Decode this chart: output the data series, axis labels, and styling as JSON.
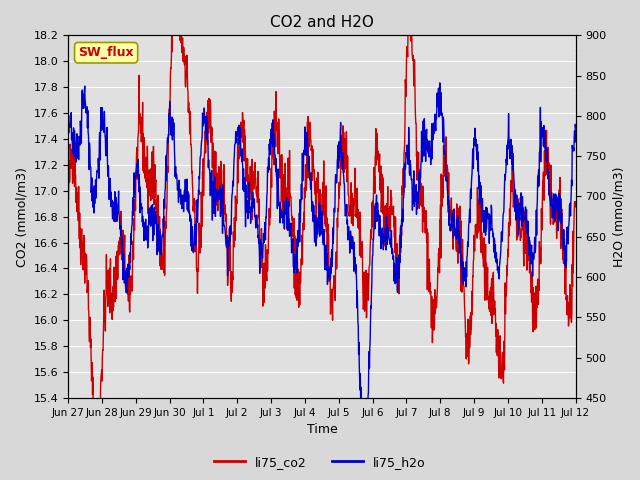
{
  "title": "CO2 and H2O",
  "xlabel": "Time",
  "ylabel_left": "CO2 (mmol/m3)",
  "ylabel_right": "H2O (mmol/m3)",
  "ylim_left": [
    15.4,
    18.2
  ],
  "ylim_right": [
    450,
    900
  ],
  "yticks_left": [
    15.4,
    15.6,
    15.8,
    16.0,
    16.2,
    16.4,
    16.6,
    16.8,
    17.0,
    17.2,
    17.4,
    17.6,
    17.8,
    18.0,
    18.2
  ],
  "yticks_right": [
    450,
    500,
    550,
    600,
    650,
    700,
    750,
    800,
    850,
    900
  ],
  "xtick_labels": [
    "Jun 27",
    "Jun 28",
    "Jun 29",
    "Jun 30",
    "Jul 1",
    "Jul 2",
    "Jul 3",
    "Jul 4",
    "Jul 5",
    "Jul 6",
    "Jul 7",
    "Jul 8",
    "Jul 9",
    "Jul 10",
    "Jul 11",
    "Jul 12"
  ],
  "color_co2": "#cc0000",
  "color_h2o": "#0000cc",
  "legend_label_co2": "li75_co2",
  "legend_label_h2o": "li75_h2o",
  "annotation_text": "SW_flux",
  "annotation_color": "#cc0000",
  "annotation_bg": "#ffffaa",
  "background_color": "#e0e0e0",
  "grid_color": "#ffffff",
  "linewidth": 1.0,
  "num_points": 1500,
  "xlim": [
    0,
    15
  ],
  "num_days": 16
}
